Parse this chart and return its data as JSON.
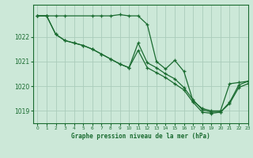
{
  "bg_color": "#cce8d8",
  "grid_color": "#aaccbb",
  "line_color": "#1a6b30",
  "title": "Graphe pression niveau de la mer (hPa)",
  "xlim": [
    -0.5,
    23
  ],
  "ylim": [
    1018.5,
    1023.3
  ],
  "yticks": [
    1019,
    1020,
    1021,
    1022
  ],
  "xticks": [
    0,
    1,
    2,
    3,
    4,
    5,
    6,
    7,
    8,
    9,
    10,
    11,
    12,
    13,
    14,
    15,
    16,
    17,
    18,
    19,
    20,
    21,
    22,
    23
  ],
  "series1_x": [
    0,
    1,
    2,
    3,
    6,
    7,
    8,
    9,
    10,
    11,
    12,
    13,
    14,
    15,
    16,
    17,
    18,
    19,
    20,
    21,
    22,
    23
  ],
  "series1_y": [
    1022.85,
    1022.85,
    1022.85,
    1022.85,
    1022.85,
    1022.85,
    1022.85,
    1022.9,
    1022.85,
    1022.85,
    1022.5,
    1021.0,
    1020.7,
    1021.05,
    1020.6,
    1019.4,
    1019.1,
    1019.0,
    1019.0,
    1020.1,
    1020.15,
    1020.2
  ],
  "series2_x": [
    0,
    1,
    2,
    3,
    4,
    5,
    6,
    7,
    8,
    9,
    10,
    11,
    12,
    13,
    14,
    15,
    16,
    17,
    18,
    19,
    20,
    21,
    22,
    23
  ],
  "series2_y": [
    1022.85,
    1022.85,
    1022.1,
    1021.85,
    1021.75,
    1021.65,
    1021.5,
    1021.3,
    1021.1,
    1020.9,
    1020.75,
    1021.75,
    1020.95,
    1020.75,
    1020.5,
    1020.3,
    1019.95,
    1019.45,
    1019.05,
    1018.95,
    1018.95,
    1019.35,
    1020.05,
    1020.2
  ],
  "series3_x": [
    0,
    1,
    2,
    3,
    4,
    5,
    6,
    7,
    8,
    9,
    10,
    11,
    12,
    13,
    14,
    15,
    16,
    17,
    18,
    19,
    20,
    21,
    22,
    23
  ],
  "series3_y": [
    1022.85,
    1022.85,
    1022.1,
    1021.85,
    1021.75,
    1021.65,
    1021.5,
    1021.3,
    1021.1,
    1020.9,
    1020.75,
    1021.45,
    1020.75,
    1020.55,
    1020.35,
    1020.1,
    1019.85,
    1019.35,
    1018.95,
    1018.9,
    1018.95,
    1019.3,
    1019.95,
    1020.1
  ]
}
